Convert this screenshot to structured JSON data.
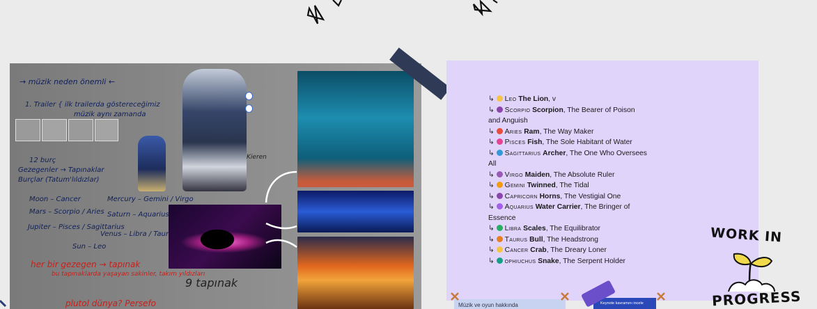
{
  "board": {
    "handwriting": {
      "line1": "→ müzik neden önemli ←",
      "line2": "1. Trailer { ilk trailerda göstereceğimiz",
      "line3": "müzik aynı zamanda",
      "line4": "12 burç",
      "line5": "Gezegenler → Tapınaklar",
      "line6": "Burçlar (Tatum'lıldızlar)",
      "pair1": "Moon – Cancer",
      "pair2": "Mercury – Gemini / Virgo",
      "pair3": "Mars – Scorpio / Aries",
      "pair4": "Saturn – Aquarius / Capricorn",
      "pair5": "Jupiter – Pisces / Sagittarius",
      "pair6": "Venus – Libra / Taurus",
      "pair7": "Sun – Leo",
      "red1": "her bir gezegen → tapınak",
      "red2": "bu tapınaklarda yaşayan sakinler, takım yıldızları",
      "note9": "9 tapınak",
      "bottom": "plutol dünya? Persefo",
      "arrow_label": "Kieren"
    }
  },
  "signs": [
    {
      "sc": "Leo",
      "name": "The Lion",
      "desc": ", v",
      "color": "#f6c445",
      "glyph": "♌"
    },
    {
      "sc": "Scorpio",
      "name": "Scorpion",
      "desc": ", The Bearer of Poison and Anguish",
      "color": "#8e44ad",
      "glyph": "♏"
    },
    {
      "sc": "Aries",
      "name": "Ram",
      "desc": ", The Way Maker",
      "color": "#e74c3c",
      "glyph": "♈"
    },
    {
      "sc": "Pisces",
      "name": "Fish",
      "desc": ", The Sole Habitant of Water",
      "color": "#e84393",
      "glyph": "♓"
    },
    {
      "sc": "Sagittarius",
      "name": "Archer",
      "desc": ", The One Who Oversees All",
      "color": "#3498db",
      "glyph": "♐"
    },
    {
      "sc": "Virgo",
      "name": "Maiden",
      "desc": ", The Absolute Ruler",
      "color": "#9b59b6",
      "glyph": "♍"
    },
    {
      "sc": "Gemini",
      "name": "Twinned",
      "desc": ", The Tidal",
      "color": "#f39c12",
      "glyph": "♊"
    },
    {
      "sc": "Capricorn",
      "name": "Horns",
      "desc": ", The Vestigial One",
      "color": "#8e44ad",
      "glyph": "♑"
    },
    {
      "sc": "Aquarius",
      "name": "Water Carrier",
      "desc": ", The Bringer of Essence",
      "color": "#a55eea",
      "glyph": "♒"
    },
    {
      "sc": "Libra",
      "name": "Scales",
      "desc": ", The Equilibrator",
      "color": "#27ae60",
      "glyph": "♎"
    },
    {
      "sc": "Taurus",
      "name": "Bull",
      "desc": ", The Headstrong",
      "color": "#e67e22",
      "glyph": "♉"
    },
    {
      "sc": "Cancer",
      "name": "Crab",
      "desc": ", The Dreary Loner",
      "color": "#f6c445",
      "glyph": "♋"
    },
    {
      "sc": "ophiuchus",
      "name": "Snake",
      "desc": ", The Serpent Holder",
      "color": "#16a085",
      "glyph": "⛎"
    }
  ],
  "sticker": {
    "line1": "WORK IN",
    "line2": "PROGRESS"
  },
  "keynote": {
    "label": "Keynote kavramını incele"
  },
  "bottom_card": {
    "text": "Müzik ve oyun hakkında"
  }
}
